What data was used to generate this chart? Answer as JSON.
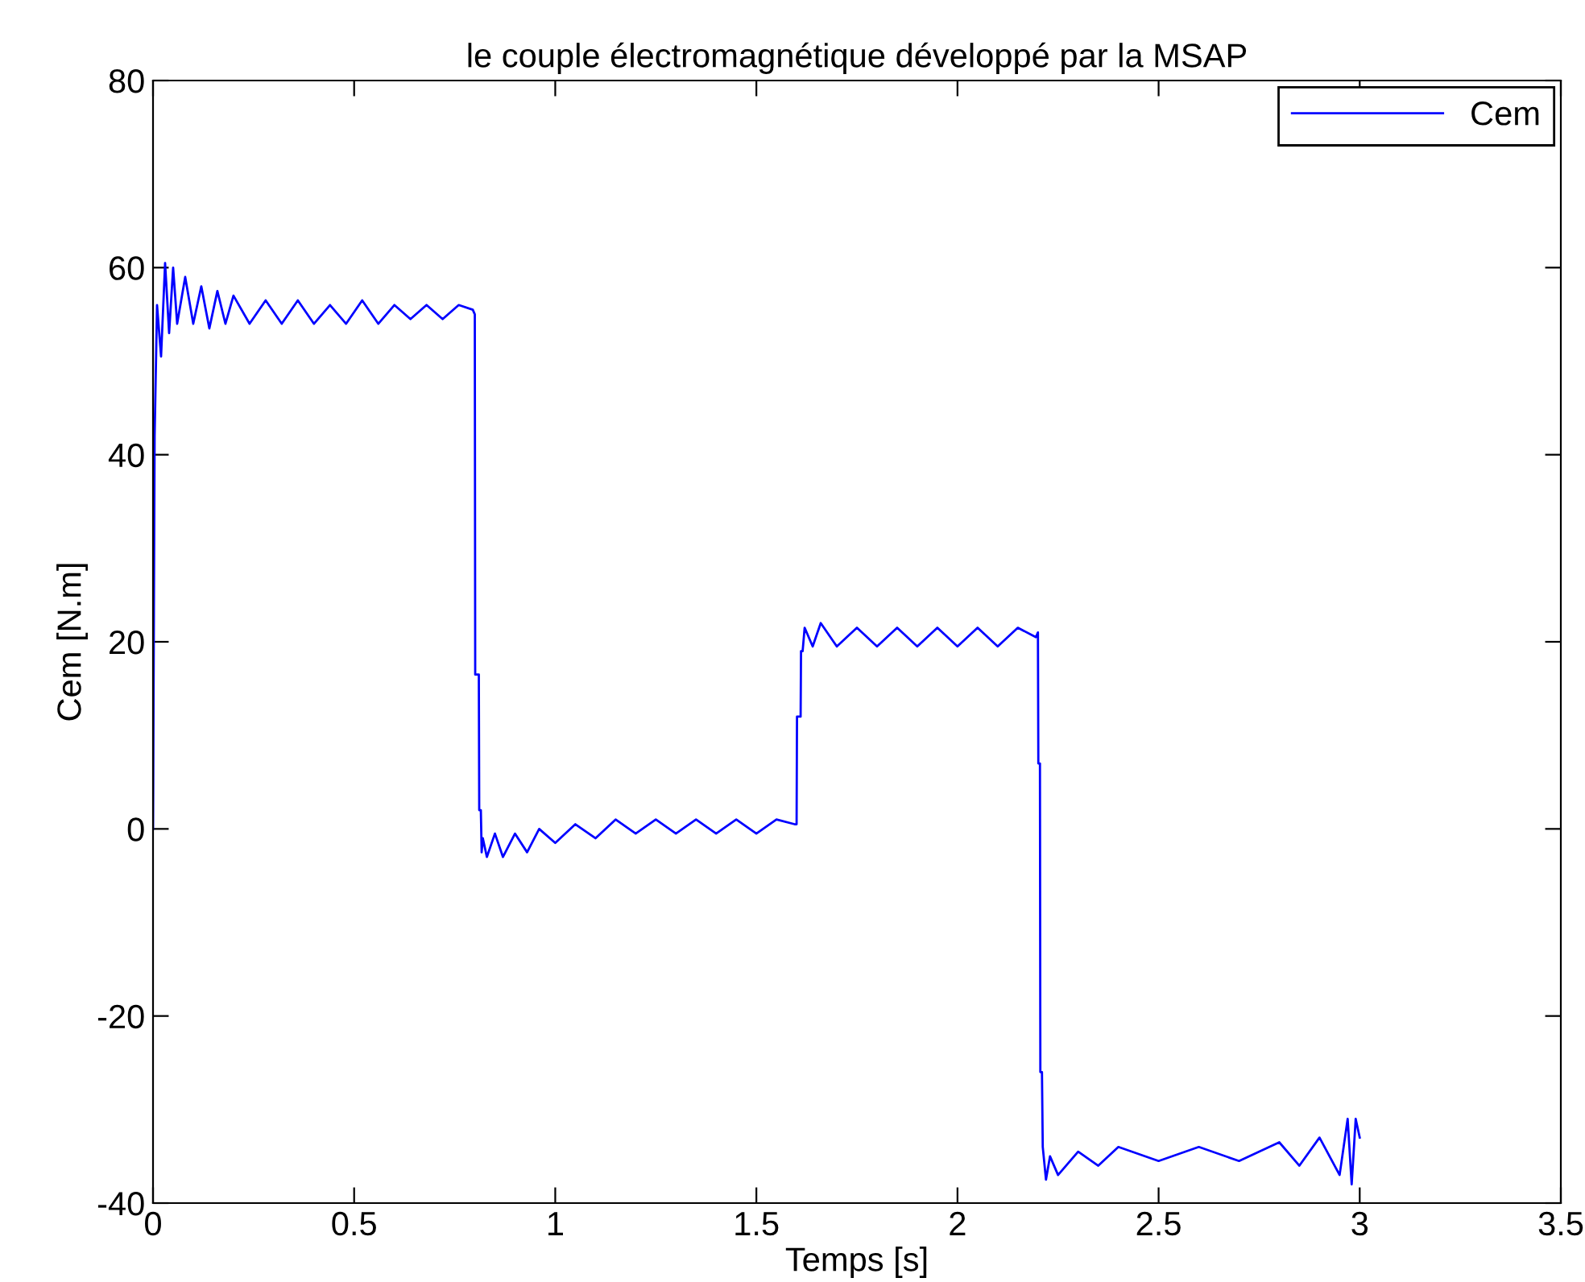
{
  "chart_data": {
    "type": "line",
    "title": "le couple électromagnétique développé par la MSAP",
    "xlabel": "Temps [s]",
    "ylabel": "Cem [N.m]",
    "series": [
      {
        "name": "Cem",
        "color": "#0000ff",
        "x": [
          0,
          0.004,
          0.01,
          0.02,
          0.03,
          0.04,
          0.05,
          0.06,
          0.08,
          0.1,
          0.12,
          0.14,
          0.16,
          0.18,
          0.2,
          0.24,
          0.28,
          0.32,
          0.36,
          0.4,
          0.44,
          0.48,
          0.52,
          0.56,
          0.6,
          0.64,
          0.68,
          0.72,
          0.76,
          0.795,
          0.8,
          0.801,
          0.81,
          0.811,
          0.815,
          0.817,
          0.82,
          0.83,
          0.85,
          0.87,
          0.9,
          0.93,
          0.96,
          1.0,
          1.05,
          1.1,
          1.15,
          1.2,
          1.25,
          1.3,
          1.35,
          1.4,
          1.45,
          1.5,
          1.55,
          1.595,
          1.6,
          1.601,
          1.61,
          1.611,
          1.615,
          1.62,
          1.64,
          1.66,
          1.7,
          1.75,
          1.8,
          1.85,
          1.9,
          1.95,
          2.0,
          2.05,
          2.1,
          2.15,
          2.195,
          2.2,
          2.201,
          2.205,
          2.206,
          2.21,
          2.212,
          2.22,
          2.23,
          2.25,
          2.3,
          2.35,
          2.4,
          2.5,
          2.6,
          2.7,
          2.8,
          2.85,
          2.9,
          2.95,
          2.97,
          2.98,
          2.99,
          3.0
        ],
        "values": [
          0,
          42,
          56,
          50.5,
          60.5,
          53,
          60,
          54,
          59,
          54,
          58,
          53.5,
          57.5,
          54,
          57,
          54,
          56.5,
          54,
          56.5,
          54,
          56,
          54,
          56.5,
          54,
          56,
          54.5,
          56,
          54.5,
          56,
          55.5,
          55,
          16.5,
          16.5,
          2,
          2,
          -2.5,
          -1,
          -3,
          -0.5,
          -3,
          -0.5,
          -2.5,
          0,
          -1.5,
          0.5,
          -1,
          1,
          -0.5,
          1,
          -0.5,
          1,
          -0.5,
          1,
          -0.5,
          1,
          0.5,
          0.5,
          12,
          12,
          19,
          19,
          21.5,
          19.5,
          22,
          19.5,
          21.5,
          19.5,
          21.5,
          19.5,
          21.5,
          19.5,
          21.5,
          19.5,
          21.5,
          20.5,
          21,
          7,
          7,
          -26,
          -26,
          -34,
          -37.5,
          -35,
          -37,
          -34.5,
          -36,
          -34,
          -35.5,
          -34,
          -35.5,
          -33.5,
          -36,
          -33,
          -37,
          -31,
          -38,
          -31,
          -33
        ]
      }
    ],
    "xlim": [
      0,
      3.5
    ],
    "xticks": [
      0,
      0.5,
      1,
      1.5,
      2,
      2.5,
      3,
      3.5
    ],
    "ylim": [
      -40,
      80
    ],
    "yticks": [
      -40,
      -20,
      0,
      20,
      40,
      60,
      80
    ],
    "legend": "top right",
    "grid": false
  }
}
